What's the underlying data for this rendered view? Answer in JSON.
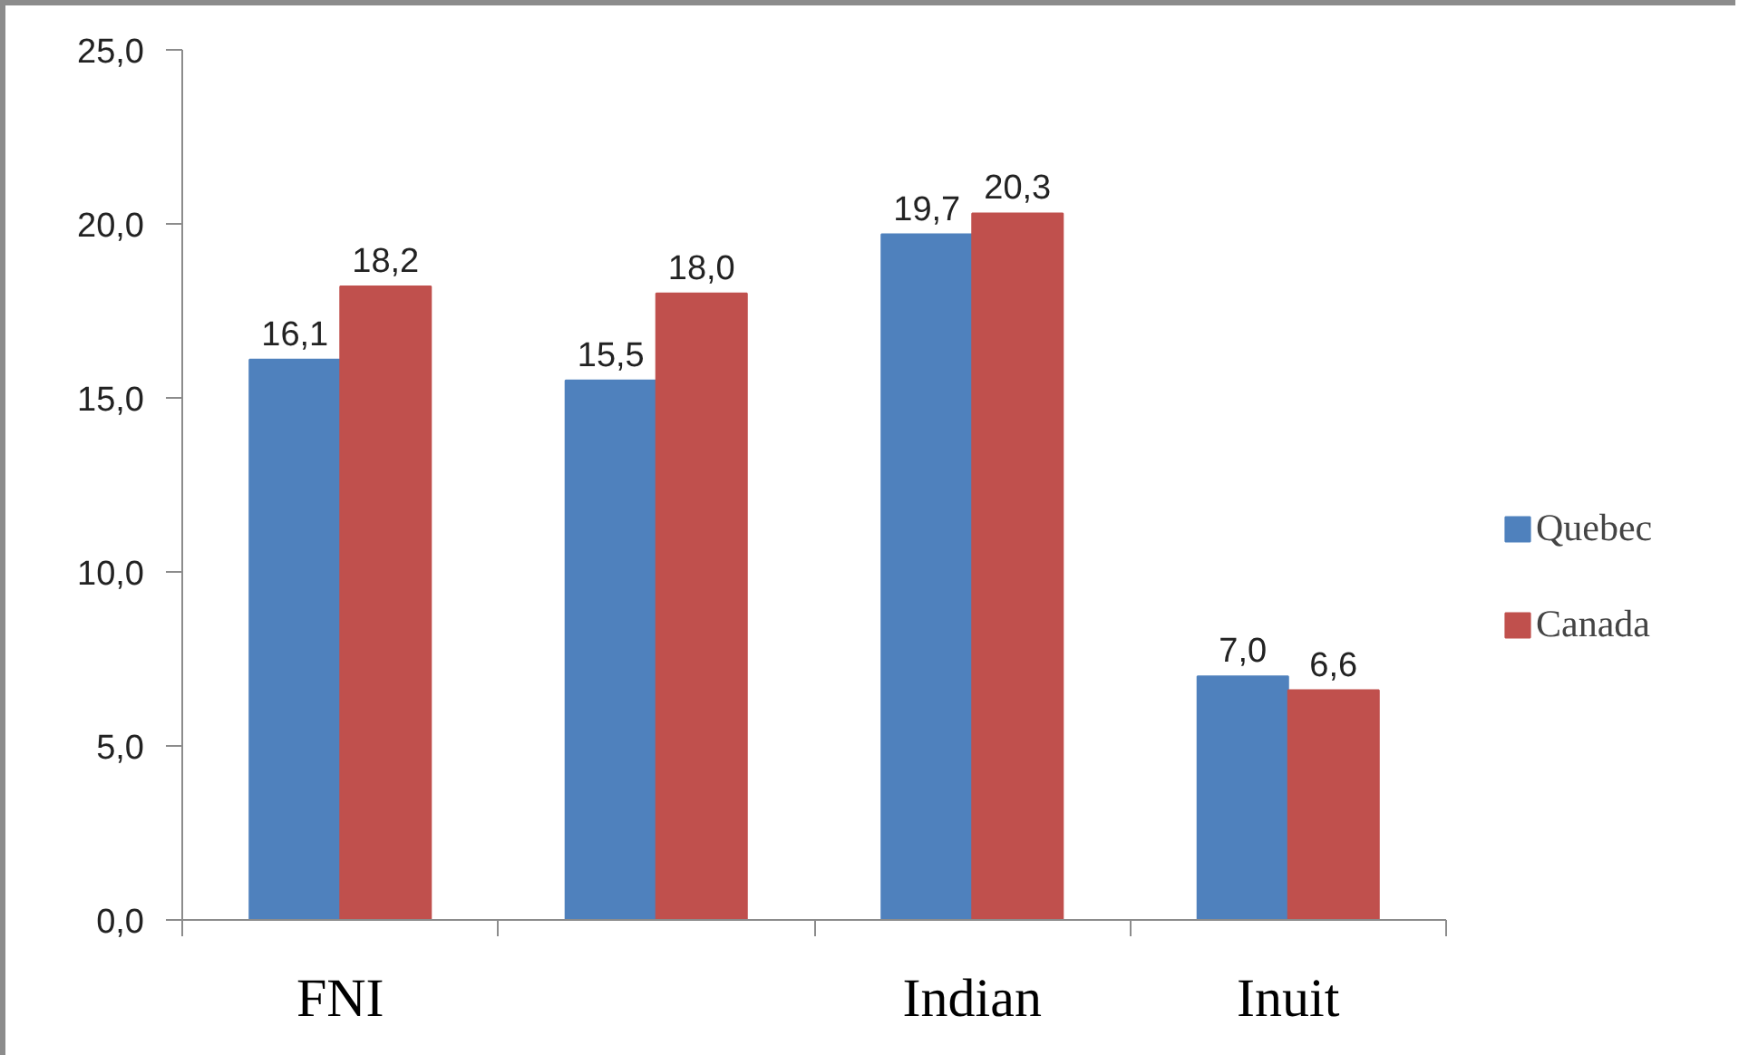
{
  "chart_data": {
    "type": "bar",
    "categories": [
      "FNI",
      null,
      "Indian",
      "Inuit"
    ],
    "series": [
      {
        "name": "Quebec",
        "color": "#4f81bd",
        "values": [
          16.1,
          15.5,
          19.7,
          7.0
        ],
        "value_labels": [
          "16,1",
          "15,5",
          "19,7",
          "7,0"
        ]
      },
      {
        "name": "Canada",
        "color": "#c0504d",
        "values": [
          18.2,
          18.0,
          20.3,
          6.6
        ],
        "value_labels": [
          "18,2",
          "18,0",
          "20,3",
          "6,6"
        ]
      }
    ],
    "ylim": [
      0,
      25
    ],
    "yticks": [
      {
        "value": 0,
        "label": "0,0"
      },
      {
        "value": 5,
        "label": "5,0"
      },
      {
        "value": 10,
        "label": "10,0"
      },
      {
        "value": 15,
        "label": "15,0"
      },
      {
        "value": 20,
        "label": "20,0"
      },
      {
        "value": 25,
        "label": "25,0"
      }
    ],
    "grid": false,
    "legend": "right"
  }
}
